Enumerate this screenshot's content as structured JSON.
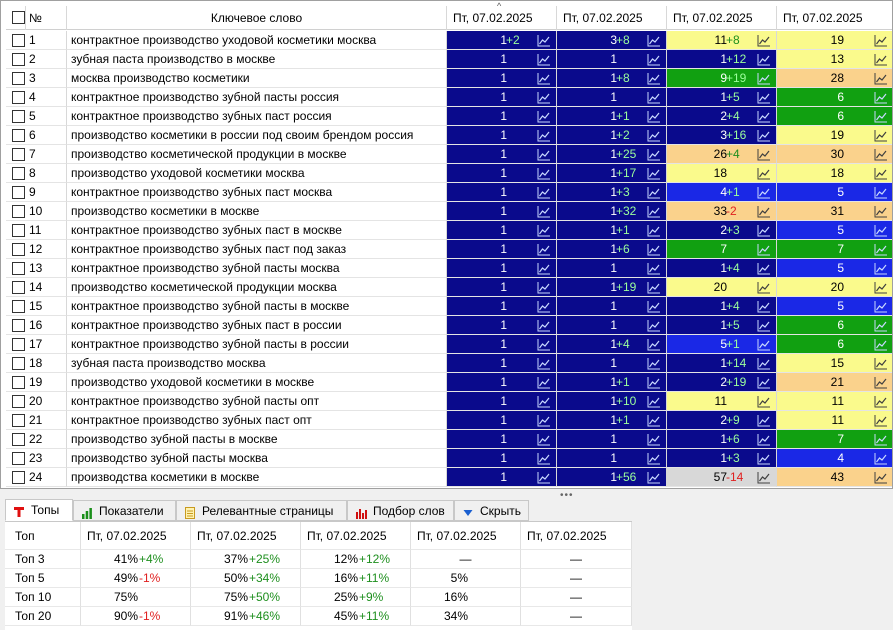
{
  "grid": {
    "headers": {
      "num": "№",
      "keyword": "Ключевое слово",
      "dates": [
        "Пт, 07.02.2025",
        "Пт, 07.02.2025",
        "Пт, 07.02.2025",
        "Пт, 07.02.2025"
      ]
    },
    "colors": {
      "navy": "#0a0a8c",
      "blue": "#1a28e6",
      "green": "#11a011",
      "yellow": "#fafa8c",
      "orange": "#fad28c",
      "grey": "#d8d8d8"
    },
    "chart_icon": "line-chart-icon",
    "rows": [
      {
        "num": "1",
        "keyword": "контрактное производство уходовой косметики москва",
        "c": [
          [
            "1",
            "+2",
            "navy"
          ],
          [
            "3",
            "+8",
            "navy"
          ],
          [
            "11",
            "+8",
            "yellow"
          ],
          [
            "19",
            "",
            "yellow"
          ]
        ]
      },
      {
        "num": "2",
        "keyword": "зубная паста производство в москве",
        "c": [
          [
            "1",
            "",
            "navy"
          ],
          [
            "1",
            "",
            "navy"
          ],
          [
            "1",
            "+12",
            "navy"
          ],
          [
            "13",
            "",
            "yellow"
          ]
        ]
      },
      {
        "num": "3",
        "keyword": "москва производство косметики",
        "c": [
          [
            "1",
            "",
            "navy"
          ],
          [
            "1",
            "+8",
            "navy"
          ],
          [
            "9",
            "+19",
            "green"
          ],
          [
            "28",
            "",
            "orange"
          ]
        ]
      },
      {
        "num": "4",
        "keyword": "контрактное производство зубной пасты россия",
        "c": [
          [
            "1",
            "",
            "navy"
          ],
          [
            "1",
            "",
            "navy"
          ],
          [
            "1",
            "+5",
            "navy"
          ],
          [
            "6",
            "",
            "green"
          ]
        ]
      },
      {
        "num": "5",
        "keyword": "контрактное производство зубных паст россия",
        "c": [
          [
            "1",
            "",
            "navy"
          ],
          [
            "1",
            "+1",
            "navy"
          ],
          [
            "2",
            "+4",
            "navy"
          ],
          [
            "6",
            "",
            "green"
          ]
        ]
      },
      {
        "num": "6",
        "keyword": "производство косметики в россии под своим брендом россия",
        "c": [
          [
            "1",
            "",
            "navy"
          ],
          [
            "1",
            "+2",
            "navy"
          ],
          [
            "3",
            "+16",
            "navy"
          ],
          [
            "19",
            "",
            "yellow"
          ]
        ]
      },
      {
        "num": "7",
        "keyword": "производство косметической продукции в москве",
        "c": [
          [
            "1",
            "",
            "navy"
          ],
          [
            "1",
            "+25",
            "navy"
          ],
          [
            "26",
            "+4",
            "orange"
          ],
          [
            "30",
            "",
            "orange"
          ]
        ]
      },
      {
        "num": "8",
        "keyword": "производство уходовой косметики москва",
        "c": [
          [
            "1",
            "",
            "navy"
          ],
          [
            "1",
            "+17",
            "navy"
          ],
          [
            "18",
            "",
            "yellow"
          ],
          [
            "18",
            "",
            "yellow"
          ]
        ]
      },
      {
        "num": "9",
        "keyword": "контрактное производство зубных паст москва",
        "c": [
          [
            "1",
            "",
            "navy"
          ],
          [
            "1",
            "+3",
            "navy"
          ],
          [
            "4",
            "+1",
            "blue"
          ],
          [
            "5",
            "",
            "blue"
          ]
        ]
      },
      {
        "num": "10",
        "keyword": "производство косметики в москве",
        "c": [
          [
            "1",
            "",
            "navy"
          ],
          [
            "1",
            "+32",
            "navy"
          ],
          [
            "33",
            "-2",
            "orange"
          ],
          [
            "31",
            "",
            "orange"
          ]
        ]
      },
      {
        "num": "11",
        "keyword": "контрактное производство зубных паст в москве",
        "c": [
          [
            "1",
            "",
            "navy"
          ],
          [
            "1",
            "+1",
            "navy"
          ],
          [
            "2",
            "+3",
            "navy"
          ],
          [
            "5",
            "",
            "blue"
          ]
        ]
      },
      {
        "num": "12",
        "keyword": "контрактное производство зубных паст под заказ",
        "c": [
          [
            "1",
            "",
            "navy"
          ],
          [
            "1",
            "+6",
            "navy"
          ],
          [
            "7",
            "",
            "green"
          ],
          [
            "7",
            "",
            "green"
          ]
        ]
      },
      {
        "num": "13",
        "keyword": "контрактное производство зубной пасты москва",
        "c": [
          [
            "1",
            "",
            "navy"
          ],
          [
            "1",
            "",
            "navy"
          ],
          [
            "1",
            "+4",
            "navy"
          ],
          [
            "5",
            "",
            "blue"
          ]
        ]
      },
      {
        "num": "14",
        "keyword": "производство косметической продукции москва",
        "c": [
          [
            "1",
            "",
            "navy"
          ],
          [
            "1",
            "+19",
            "navy"
          ],
          [
            "20",
            "",
            "yellow"
          ],
          [
            "20",
            "",
            "yellow"
          ]
        ]
      },
      {
        "num": "15",
        "keyword": "контрактное производство зубной пасты в москве",
        "c": [
          [
            "1",
            "",
            "navy"
          ],
          [
            "1",
            "",
            "navy"
          ],
          [
            "1",
            "+4",
            "navy"
          ],
          [
            "5",
            "",
            "blue"
          ]
        ]
      },
      {
        "num": "16",
        "keyword": "контрактное производство зубных паст в россии",
        "c": [
          [
            "1",
            "",
            "navy"
          ],
          [
            "1",
            "",
            "navy"
          ],
          [
            "1",
            "+5",
            "navy"
          ],
          [
            "6",
            "",
            "green"
          ]
        ]
      },
      {
        "num": "17",
        "keyword": "контрактное производство зубной пасты в россии",
        "c": [
          [
            "1",
            "",
            "navy"
          ],
          [
            "1",
            "+4",
            "navy"
          ],
          [
            "5",
            "+1",
            "blue"
          ],
          [
            "6",
            "",
            "green"
          ]
        ]
      },
      {
        "num": "18",
        "keyword": "зубная паста производство москва",
        "c": [
          [
            "1",
            "",
            "navy"
          ],
          [
            "1",
            "",
            "navy"
          ],
          [
            "1",
            "+14",
            "navy"
          ],
          [
            "15",
            "",
            "yellow"
          ]
        ]
      },
      {
        "num": "19",
        "keyword": "производство уходовой косметики в москве",
        "c": [
          [
            "1",
            "",
            "navy"
          ],
          [
            "1",
            "+1",
            "navy"
          ],
          [
            "2",
            "+19",
            "navy"
          ],
          [
            "21",
            "",
            "orange"
          ]
        ]
      },
      {
        "num": "20",
        "keyword": "контрактное производство зубной пасты опт",
        "c": [
          [
            "1",
            "",
            "navy"
          ],
          [
            "1",
            "+10",
            "navy"
          ],
          [
            "11",
            "",
            "yellow"
          ],
          [
            "11",
            "",
            "yellow"
          ]
        ]
      },
      {
        "num": "21",
        "keyword": "контрактное производство зубных паст опт",
        "c": [
          [
            "1",
            "",
            "navy"
          ],
          [
            "1",
            "+1",
            "navy"
          ],
          [
            "2",
            "+9",
            "navy"
          ],
          [
            "11",
            "",
            "yellow"
          ]
        ]
      },
      {
        "num": "22",
        "keyword": "производство зубной пасты в москве",
        "c": [
          [
            "1",
            "",
            "navy"
          ],
          [
            "1",
            "",
            "navy"
          ],
          [
            "1",
            "+6",
            "navy"
          ],
          [
            "7",
            "",
            "green"
          ]
        ]
      },
      {
        "num": "23",
        "keyword": "производство зубной пасты москва",
        "c": [
          [
            "1",
            "",
            "navy"
          ],
          [
            "1",
            "",
            "navy"
          ],
          [
            "1",
            "+3",
            "navy"
          ],
          [
            "4",
            "",
            "blue"
          ]
        ]
      },
      {
        "num": "24",
        "keyword": "производства косметики в москве",
        "c": [
          [
            "1",
            "",
            "navy"
          ],
          [
            "1",
            "+56",
            "navy"
          ],
          [
            "57",
            "-14",
            "grey"
          ],
          [
            "43",
            "",
            "orange"
          ]
        ]
      }
    ]
  },
  "tabs": [
    {
      "label": "Топы",
      "icon": "tops-icon",
      "active": true
    },
    {
      "label": "Показатели",
      "icon": "bar-chart-icon",
      "active": false
    },
    {
      "label": "Релевантные страницы",
      "icon": "document-icon",
      "active": false
    },
    {
      "label": "Подбор слов",
      "icon": "column-chart-icon",
      "active": false
    },
    {
      "label": "Скрыть",
      "icon": "triangle-down-icon",
      "active": false
    }
  ],
  "tops": {
    "header": [
      "Топ",
      "Пт, 07.02.2025",
      "Пт, 07.02.2025",
      "Пт, 07.02.2025",
      "Пт, 07.02.2025",
      "Пт, 07.02.2025"
    ],
    "rows": [
      {
        "label": "Топ 3",
        "c": [
          [
            "41%",
            "+4%"
          ],
          [
            "37%",
            "+25%"
          ],
          [
            "12%",
            "+12%"
          ],
          [
            "—",
            ""
          ],
          [
            "—",
            ""
          ]
        ]
      },
      {
        "label": "Топ 5",
        "c": [
          [
            "49%",
            "-1%"
          ],
          [
            "50%",
            "+34%"
          ],
          [
            "16%",
            "+11%"
          ],
          [
            "5%",
            ""
          ],
          [
            "—",
            ""
          ]
        ]
      },
      {
        "label": "Топ 10",
        "c": [
          [
            "75%",
            ""
          ],
          [
            "75%",
            "+50%"
          ],
          [
            "25%",
            "+9%"
          ],
          [
            "16%",
            ""
          ],
          [
            "—",
            ""
          ]
        ]
      },
      {
        "label": "Топ 20",
        "c": [
          [
            "90%",
            "-1%"
          ],
          [
            "91%",
            "+46%"
          ],
          [
            "45%",
            "+11%"
          ],
          [
            "34%",
            ""
          ],
          [
            "—",
            ""
          ]
        ]
      }
    ]
  }
}
